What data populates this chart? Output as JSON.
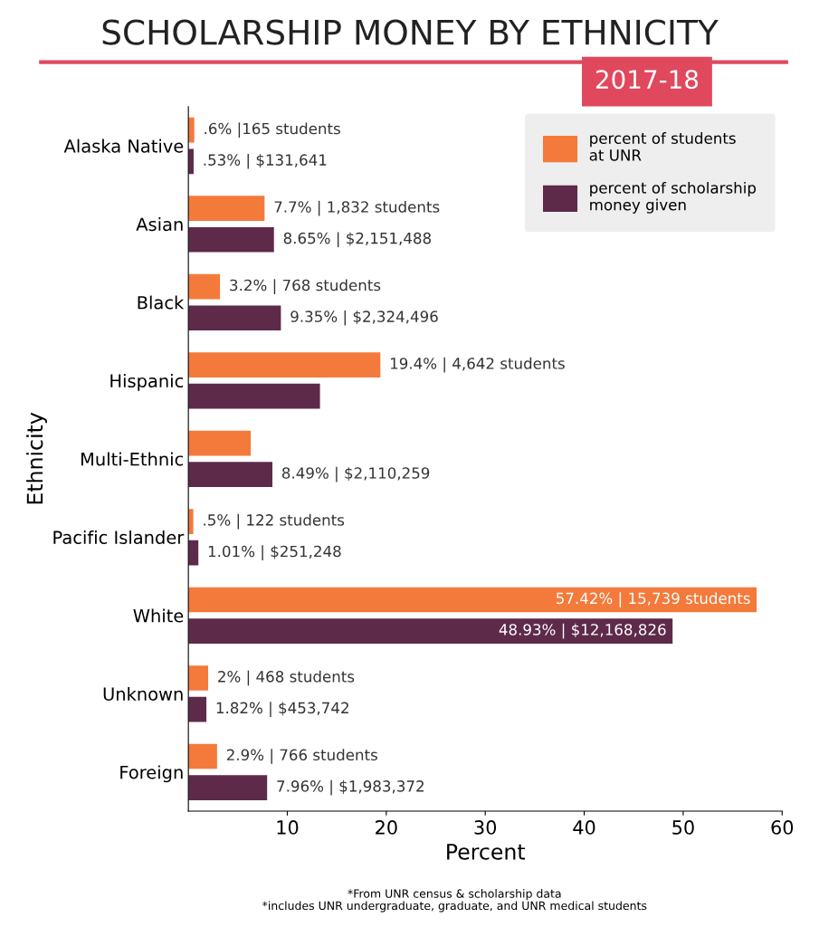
{
  "chart_data": {
    "type": "bar",
    "orientation": "horizontal",
    "title": "SCHOLARSHIP MONEY BY ETHNICITY",
    "subtitle": "2017-18",
    "xlabel": "Percent",
    "ylabel": "Ethnicity",
    "categories": [
      "Alaska Native",
      "Asian",
      "Black",
      "Hispanic",
      "Multi-Ethnic",
      "Pacific Islander",
      "White",
      "Unknown",
      "Foreign"
    ],
    "series": [
      {
        "name": "percent of students at UNR",
        "color": "#f47a3b",
        "values": [
          0.6,
          7.7,
          3.2,
          19.4,
          6.3,
          0.5,
          57.42,
          2,
          2.9
        ],
        "value_labels": [
          ".6% |165 students",
          "7.7% | 1,832 students",
          "3.2% | 768 students",
          "19.4% | 4,642 students",
          null,
          ".5% | 122 students",
          "57.42% | 15,739 students",
          "2% | 468 students",
          "2.9% | 766 students"
        ]
      },
      {
        "name": "percent of scholarship money given",
        "color": "#5e2a4a",
        "values": [
          0.53,
          8.65,
          9.35,
          13.3,
          8.49,
          1.01,
          48.93,
          1.82,
          7.96
        ],
        "value_labels": [
          ".53% | $131,641",
          "8.65% | $2,151,488",
          "9.35% | $2,324,496",
          null,
          "8.49% | $2,110,259",
          "1.01% | $251,248",
          "48.93% | $12,168,826",
          "1.82% | $453,742",
          "7.96% | $1,983,372"
        ]
      }
    ],
    "xlim": [
      0,
      60
    ],
    "xticks": [
      10,
      20,
      30,
      40,
      50,
      60
    ],
    "grid": false,
    "legend": "top right",
    "annotations": [
      "*From UNR census & scholarship data",
      "*includes UNR undergraduate, graduate, and UNR medical students"
    ]
  }
}
